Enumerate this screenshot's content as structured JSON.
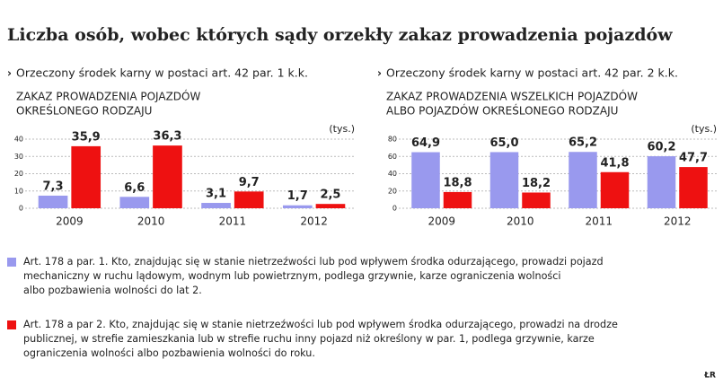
{
  "title": "Liczba osób, wobec których sądy orzekły zakaz prowadzenia pojazdów",
  "legend": [
    {
      "color": "#9999ee",
      "text": [
        "Art. 178 a par. 1. Kto, znajdując się w stanie nietrzeźwości lub pod wpływem środka odurzającego, prowadzi pojazd",
        "mechaniczny w ruchu lądowym, wodnym lub powietrznym, podlega grzywnie, karze ograniczenia wolności",
        "albo pozbawienia wolności do lat 2."
      ]
    },
    {
      "color": "#ee1111",
      "text": [
        "Art. 178 a par 2. Kto, znajdując się w stanie nietrzeźwości lub pod wpływem środka odurzającego, prowadzi na drodze",
        "publicznej, w strefie zamieszkania lub w strefie ruchu inny pojazd niż określony w par. 1, podlega grzywnie, karze",
        "ograniczenia wolności albo pozbawienia wolności do roku."
      ]
    }
  ],
  "source": "ŁR",
  "chart_data": [
    {
      "type": "bar",
      "subtitle": "Orzeczony środek karny w postaci art. 42 par. 1 k.k.",
      "label": [
        "ZAKAZ PROWADZENIA POJAZDÓW",
        "OKREŚLONEGO RODZAJU"
      ],
      "unit": "(tys.)",
      "categories": [
        "2009",
        "2010",
        "2011",
        "2012"
      ],
      "series": [
        {
          "color": "#9999ee",
          "values": [
            7.3,
            6.6,
            3.1,
            1.7
          ],
          "value_labels": [
            "7,3",
            "6,6",
            "3,1",
            "1,7"
          ]
        },
        {
          "color": "#ee1111",
          "values": [
            35.9,
            36.3,
            9.7,
            2.5
          ],
          "value_labels": [
            "35,9",
            "36,3",
            "9,7",
            "2,5"
          ]
        }
      ],
      "ylim": [
        0,
        40
      ],
      "yticks": [
        0,
        10,
        20,
        30,
        40
      ],
      "grid": true
    },
    {
      "type": "bar",
      "subtitle": "Orzeczony środek karny w postaci art. 42 par. 2 k.k.",
      "label": [
        "ZAKAZ PROWADZENIA WSZELKICH POJAZDÓW",
        "ALBO POJAZDÓW OKREŚLONEGO RODZAJU"
      ],
      "unit": "(tys.)",
      "categories": [
        "2009",
        "2010",
        "2011",
        "2012"
      ],
      "series": [
        {
          "color": "#9999ee",
          "values": [
            64.9,
            65.0,
            65.2,
            60.2
          ],
          "value_labels": [
            "64,9",
            "65,0",
            "65,2",
            "60,2"
          ]
        },
        {
          "color": "#ee1111",
          "values": [
            18.8,
            18.2,
            41.8,
            47.7
          ],
          "value_labels": [
            "18,8",
            "18,2",
            "41,8",
            "47,7"
          ]
        }
      ],
      "ylim": [
        0,
        80
      ],
      "yticks": [
        0,
        20,
        40,
        60,
        80
      ],
      "grid": true
    }
  ]
}
